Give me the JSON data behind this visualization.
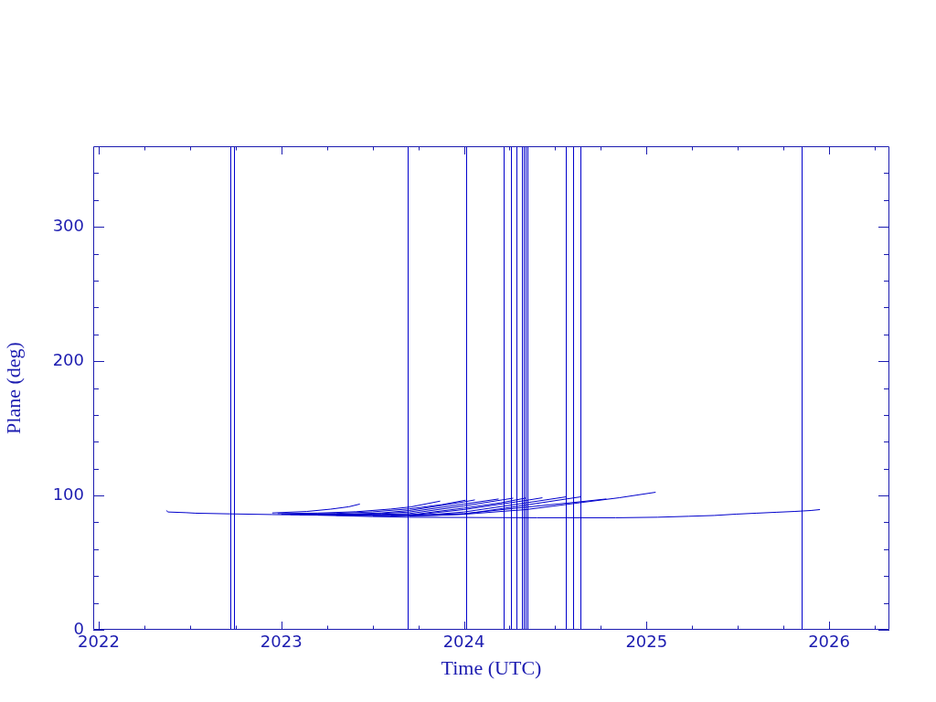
{
  "chart_data": {
    "type": "line",
    "xlabel": "Time (UTC)",
    "ylabel": "Plane (deg)",
    "xlim": [
      2021.97,
      2026.33
    ],
    "ylim": [
      0,
      360
    ],
    "xticks": [
      2022,
      {
        "value": 2022.25,
        "label": null
      },
      {
        "value": 2022.5,
        "label": null
      },
      {
        "value": 2022.75,
        "label": null
      },
      2023,
      {
        "value": 2023.25,
        "label": null
      },
      {
        "value": 2023.5,
        "label": null
      },
      {
        "value": 2023.75,
        "label": null
      },
      2024,
      {
        "value": 2024.25,
        "label": null
      },
      {
        "value": 2024.5,
        "label": null
      },
      {
        "value": 2024.75,
        "label": null
      },
      2025,
      {
        "value": 2025.25,
        "label": null
      },
      {
        "value": 2025.5,
        "label": null
      },
      {
        "value": 2025.75,
        "label": null
      },
      2026,
      {
        "value": 2026.25,
        "label": null
      }
    ],
    "yticks": [
      0,
      {
        "value": 20,
        "label": null
      },
      {
        "value": 40,
        "label": null
      },
      {
        "value": 60,
        "label": null
      },
      {
        "value": 80,
        "label": null
      },
      100,
      {
        "value": 120,
        "label": null
      },
      {
        "value": 140,
        "label": null
      },
      {
        "value": 160,
        "label": null
      },
      {
        "value": 180,
        "label": null
      },
      200,
      {
        "value": 220,
        "label": null
      },
      {
        "value": 240,
        "label": null
      },
      {
        "value": 260,
        "label": null
      },
      {
        "value": 280,
        "label": null
      },
      300,
      {
        "value": 320,
        "label": null
      },
      {
        "value": 340,
        "label": null
      }
    ],
    "grid": false,
    "legend": false,
    "marker": "none",
    "series": [
      {
        "color": "#0000cc",
        "x": [
          2022.37,
          2022.38,
          2022.48,
          2022.53,
          2022.72,
          2022.95,
          2023.2,
          2023.5,
          2023.7,
          2024.4,
          2024.83,
          2025.06,
          2025.23,
          2025.37,
          2025.49,
          2025.6,
          2025.71,
          2025.81,
          2025.9,
          2025.95
        ],
        "values": [
          88.8,
          87.7,
          87.2,
          86.8,
          86.3,
          85.8,
          85.4,
          84.3,
          83.8,
          83.4,
          83.4,
          83.8,
          84.5,
          85.1,
          86.1,
          86.8,
          87.5,
          88.1,
          88.8,
          89.5
        ]
      },
      {
        "color": "#0000cc",
        "x": [
          2022.95,
          2023.14,
          2023.27,
          2023.37,
          2023.43
        ],
        "values": [
          87.0,
          88.1,
          89.8,
          91.6,
          93.6
        ]
      },
      {
        "color": "#0000cc",
        "x": [
          2022.98,
          2023.2,
          2023.41,
          2023.6,
          2023.71,
          2023.87
        ],
        "values": [
          86.5,
          86.9,
          87.9,
          89.9,
          91.5,
          95.8
        ]
      },
      {
        "color": "#0000cc",
        "x": [
          2023.0,
          2023.3,
          2023.5,
          2023.7,
          2023.88,
          2024.01
        ],
        "values": [
          86.0,
          86.6,
          87.8,
          90.0,
          93.2,
          96.5
        ]
      },
      {
        "color": "#0000cc",
        "x": [
          2023.05,
          2023.4,
          2023.55,
          2023.7,
          2024.0,
          2024.06
        ],
        "values": [
          85.8,
          86.3,
          87.0,
          88.8,
          95.2,
          96.7
        ]
      },
      {
        "color": "#0000cc",
        "x": [
          2023.1,
          2023.5,
          2023.7,
          2024.0,
          2024.19
        ],
        "values": [
          85.6,
          86.2,
          87.7,
          93.6,
          97.4
        ]
      },
      {
        "color": "#0000cc",
        "x": [
          2023.15,
          2023.55,
          2023.7,
          2024.0,
          2024.27
        ],
        "values": [
          85.5,
          85.9,
          86.5,
          92.2,
          98.0
        ]
      },
      {
        "color": "#0000cc",
        "x": [
          2023.2,
          2023.7,
          2024.0,
          2024.2,
          2024.34
        ],
        "values": [
          85.3,
          85.4,
          90.6,
          94.5,
          98.1
        ]
      },
      {
        "color": "#0000cc",
        "x": [
          2023.3,
          2023.75,
          2024.0,
          2024.34,
          2024.43
        ],
        "values": [
          85.2,
          85.8,
          89.5,
          96.3,
          98.3
        ]
      },
      {
        "color": "#0000cc",
        "x": [
          2023.4,
          2023.8,
          2024.0,
          2024.34,
          2024.56
        ],
        "values": [
          85.0,
          85.5,
          87.7,
          94.5,
          99.0
        ]
      },
      {
        "color": "#0000cc",
        "x": [
          2023.5,
          2023.85,
          2024.0,
          2024.34,
          2024.64
        ],
        "values": [
          84.9,
          85.2,
          86.1,
          92.9,
          99.0
        ]
      },
      {
        "color": "#0000cc",
        "x": [
          2023.6,
          2024.0,
          2024.34,
          2024.6,
          2024.78
        ],
        "values": [
          84.8,
          86.5,
          91.3,
          94.8,
          97.4
        ]
      },
      {
        "color": "#0000cc",
        "x": [
          2023.7,
          2024.0,
          2024.34,
          2024.64,
          2024.85,
          2025.05
        ],
        "values": [
          84.7,
          86.0,
          89.5,
          94.7,
          98.3,
          102.4
        ]
      }
    ],
    "ref_lines": [
      {
        "axis": "x",
        "value": 2022.72,
        "color": "#0000cc"
      },
      {
        "axis": "x",
        "value": 2022.74,
        "color": "#0000cc"
      },
      {
        "axis": "x",
        "value": 2023.69,
        "color": "#0000cc"
      },
      {
        "axis": "x",
        "value": 2024.01,
        "color": "#0000cc"
      },
      {
        "axis": "x",
        "value": 2024.22,
        "color": "#0000cc"
      },
      {
        "axis": "x",
        "value": 2024.26,
        "color": "#0000cc"
      },
      {
        "axis": "x",
        "value": 2024.29,
        "color": "#0000cc"
      },
      {
        "axis": "x",
        "value": 2024.32,
        "color": "#0000cc"
      },
      {
        "axis": "x",
        "value": 2024.33,
        "color": "#0000cc"
      },
      {
        "axis": "x",
        "value": 2024.34,
        "color": "#0000cc"
      },
      {
        "axis": "x",
        "value": 2024.35,
        "color": "#0000cc"
      },
      {
        "axis": "x",
        "value": 2024.56,
        "color": "#0000cc"
      },
      {
        "axis": "x",
        "value": 2024.6,
        "color": "#0000cc"
      },
      {
        "axis": "x",
        "value": 2024.64,
        "color": "#0000cc"
      },
      {
        "axis": "x",
        "value": 2025.85,
        "color": "#0000cc"
      }
    ]
  }
}
